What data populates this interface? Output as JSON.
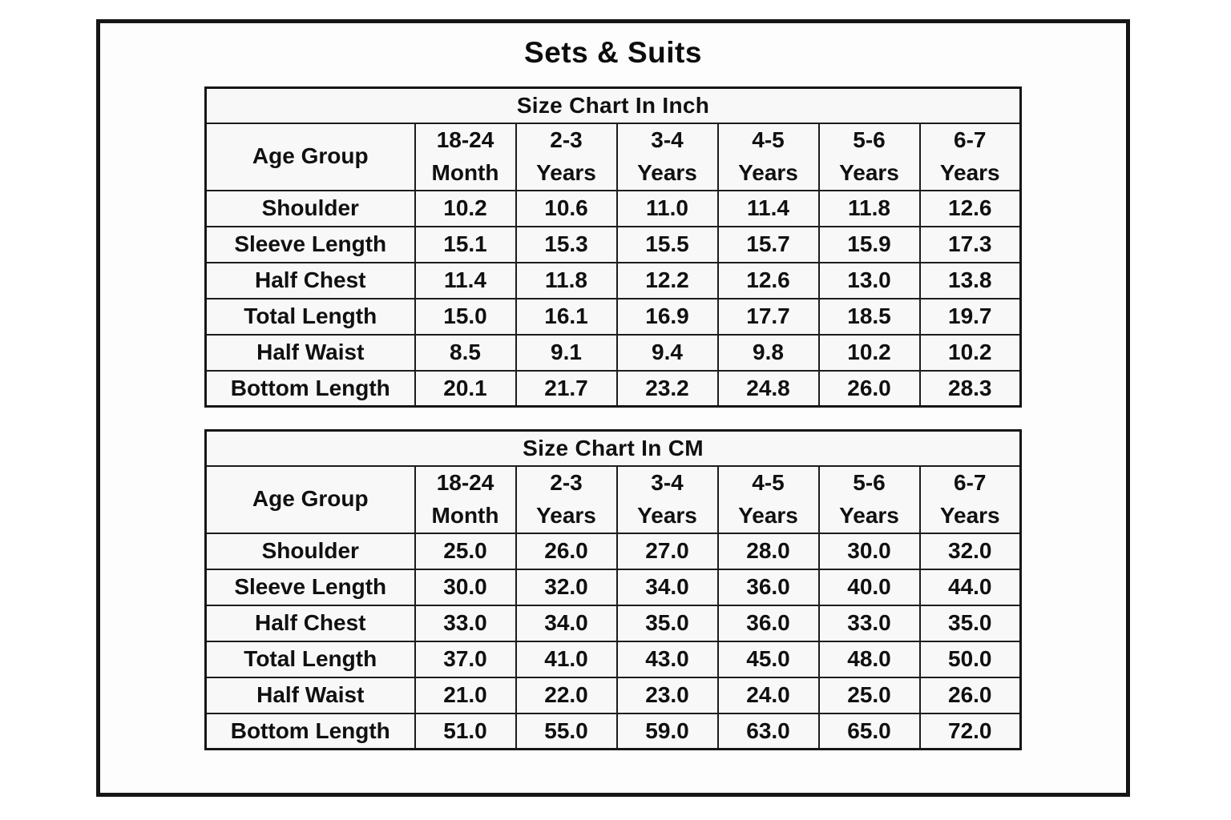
{
  "page": {
    "title": "Sets & Suits"
  },
  "colors": {
    "text": "#111111",
    "border": "#161616",
    "background": "#ffffff",
    "cell_background": "#f8f8f8"
  },
  "tables": [
    {
      "title": "Size Chart In Inch",
      "header": [
        "Age Group",
        "18-24\nMonth",
        "2-3\nYears",
        "3-4\nYears",
        "4-5\nYears",
        "5-6\nYears",
        "6-7\nYears"
      ],
      "rows": [
        {
          "label": "Shoulder",
          "values": [
            "10.2",
            "10.6",
            "11.0",
            "11.4",
            "11.8",
            "12.6"
          ]
        },
        {
          "label": "Sleeve Length",
          "values": [
            "15.1",
            "15.3",
            "15.5",
            "15.7",
            "15.9",
            "17.3"
          ]
        },
        {
          "label": "Half Chest",
          "values": [
            "11.4",
            "11.8",
            "12.2",
            "12.6",
            "13.0",
            "13.8"
          ]
        },
        {
          "label": "Total Length",
          "values": [
            "15.0",
            "16.1",
            "16.9",
            "17.7",
            "18.5",
            "19.7"
          ]
        },
        {
          "label": "Half Waist",
          "values": [
            "8.5",
            "9.1",
            "9.4",
            "9.8",
            "10.2",
            "10.2"
          ]
        },
        {
          "label": "Bottom Length",
          "values": [
            "20.1",
            "21.7",
            "23.2",
            "24.8",
            "26.0",
            "28.3"
          ]
        }
      ]
    },
    {
      "title": "Size Chart In CM",
      "header": [
        "Age Group",
        "18-24\nMonth",
        "2-3\nYears",
        "3-4\nYears",
        "4-5\nYears",
        "5-6\nYears",
        "6-7\nYears"
      ],
      "rows": [
        {
          "label": "Shoulder",
          "values": [
            "25.0",
            "26.0",
            "27.0",
            "28.0",
            "30.0",
            "32.0"
          ]
        },
        {
          "label": "Sleeve Length",
          "values": [
            "30.0",
            "32.0",
            "34.0",
            "36.0",
            "40.0",
            "44.0"
          ]
        },
        {
          "label": "Half Chest",
          "values": [
            "33.0",
            "34.0",
            "35.0",
            "36.0",
            "33.0",
            "35.0"
          ]
        },
        {
          "label": "Total Length",
          "values": [
            "37.0",
            "41.0",
            "43.0",
            "45.0",
            "48.0",
            "50.0"
          ]
        },
        {
          "label": "Half Waist",
          "values": [
            "21.0",
            "22.0",
            "23.0",
            "24.0",
            "25.0",
            "26.0"
          ]
        },
        {
          "label": "Bottom Length",
          "values": [
            "51.0",
            "55.0",
            "59.0",
            "63.0",
            "65.0",
            "72.0"
          ]
        }
      ]
    }
  ]
}
